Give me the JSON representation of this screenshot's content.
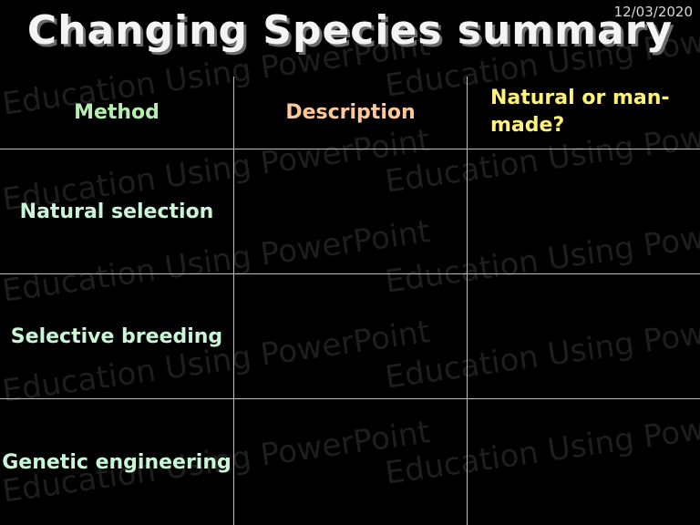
{
  "date": "12/03/2020",
  "title": "Changing Species summary",
  "watermark_text": "Education Using PowerPoint",
  "table": {
    "headers": [
      "Method",
      "Description",
      "Natural or man-made?"
    ],
    "rows": [
      {
        "method": "Natural selection",
        "description": "",
        "natural_or_man_made": ""
      },
      {
        "method": "Selective breeding",
        "description": "",
        "natural_or_man_made": ""
      },
      {
        "method": "Genetic engineering",
        "description": "",
        "natural_or_man_made": ""
      }
    ]
  }
}
